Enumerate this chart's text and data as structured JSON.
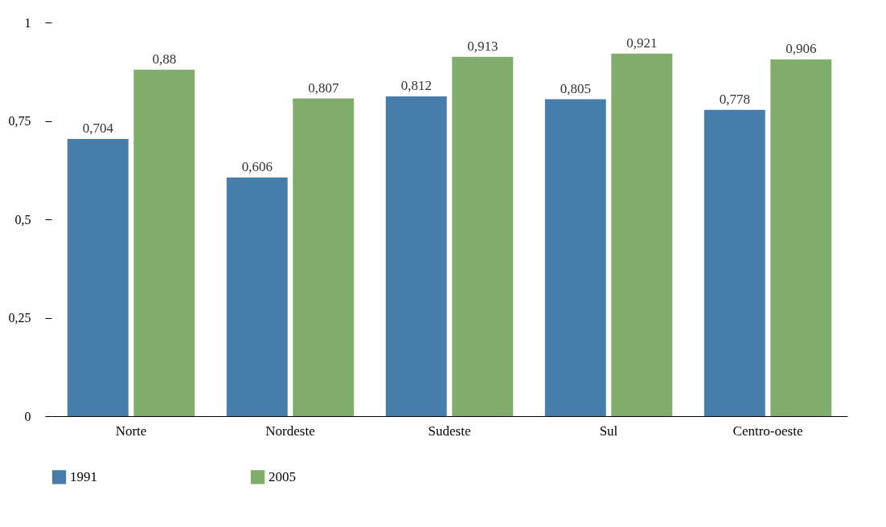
{
  "chart_data": {
    "type": "bar",
    "categories": [
      "Norte",
      "Nordeste",
      "Sudeste",
      "Sul",
      "Centro-oeste"
    ],
    "series": [
      {
        "name": "1991",
        "color": "#477dab",
        "values": [
          0.704,
          0.606,
          0.812,
          0.805,
          0.778
        ],
        "value_labels": [
          "0,704",
          "0,606",
          "0,812",
          "0,805",
          "0,778"
        ]
      },
      {
        "name": "2005",
        "color": "#80ac6c",
        "values": [
          0.88,
          0.807,
          0.913,
          0.921,
          0.906
        ],
        "value_labels": [
          "0,88",
          "0,807",
          "0,913",
          "0,921",
          "0,906"
        ]
      }
    ],
    "ylim": [
      0,
      1
    ],
    "yticks": [
      0,
      {
        "value": 0.25,
        "label": "0,25"
      },
      {
        "value": 0.5,
        "label": "0,5"
      },
      {
        "value": 0.75,
        "label": "0,75"
      },
      1
    ],
    "grid": false,
    "legend": "bottom"
  }
}
